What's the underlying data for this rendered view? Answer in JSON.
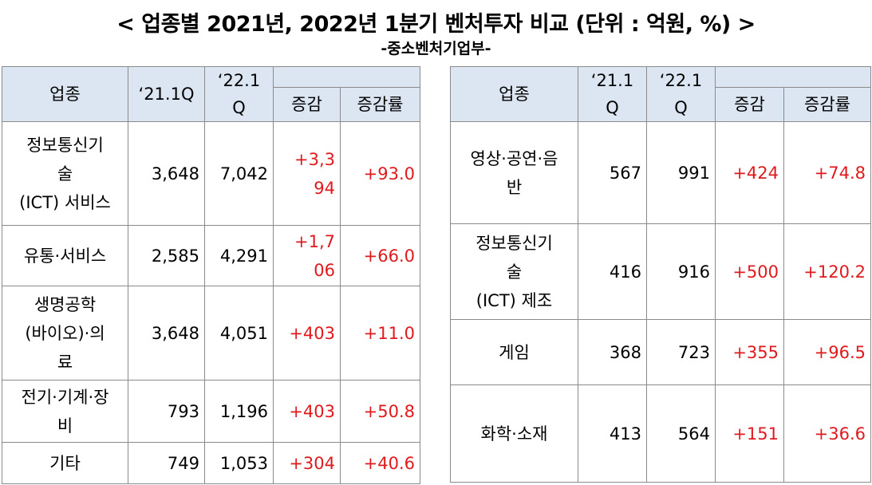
{
  "title": "< 업종별 2021년, 2022년 1분기 벤처투자 비교 (단위 : 억원, %) >",
  "subtitle": "-중소벤처기업부-",
  "colors": {
    "header_bg": "#dce6f2",
    "positive": "#e0191d",
    "border": "#8a8a8a"
  },
  "left_table": {
    "headers": {
      "industry": "업종",
      "q21": "‘21.1Q",
      "q22": "‘22.1\nQ",
      "change": "증감",
      "rate": "증감률"
    },
    "rows": [
      {
        "industry": "정보통신기\n술\n(ICT) 서비스",
        "q21": "3,648",
        "q22": "7,042",
        "change": "+3,3\n94",
        "rate": "+93.0"
      },
      {
        "industry": "유통·서비스",
        "q21": "2,585",
        "q22": "4,291",
        "change": "+1,7\n06",
        "rate": "+66.0"
      },
      {
        "industry": "생명공학\n(바이오)·의\n료",
        "q21": "3,648",
        "q22": "4,051",
        "change": "+403",
        "rate": "+11.0"
      },
      {
        "industry": "전기·기계·장\n비",
        "q21": "793",
        "q22": "1,196",
        "change": "+403",
        "rate": "+50.8"
      },
      {
        "industry": "기타",
        "q21": "749",
        "q22": "1,053",
        "change": "+304",
        "rate": "+40.6"
      }
    ]
  },
  "right_table": {
    "headers": {
      "industry": "업종",
      "q21": "‘21.1\nQ",
      "q22": "‘22.1\nQ",
      "change": "증감",
      "rate": "증감률"
    },
    "rows": [
      {
        "industry": "영상·공연·음\n반",
        "q21": "567",
        "q22": "991",
        "change": "+424",
        "rate": "+74.8"
      },
      {
        "industry": "정보통신기\n술\n(ICT) 제조",
        "q21": "416",
        "q22": "916",
        "change": "+500",
        "rate": "+120.2"
      },
      {
        "industry": "게임",
        "q21": "368",
        "q22": "723",
        "change": "+355",
        "rate": "+96.5"
      },
      {
        "industry": "화학·소재",
        "q21": "413",
        "q22": "564",
        "change": "+151",
        "rate": "+36.6"
      }
    ]
  }
}
